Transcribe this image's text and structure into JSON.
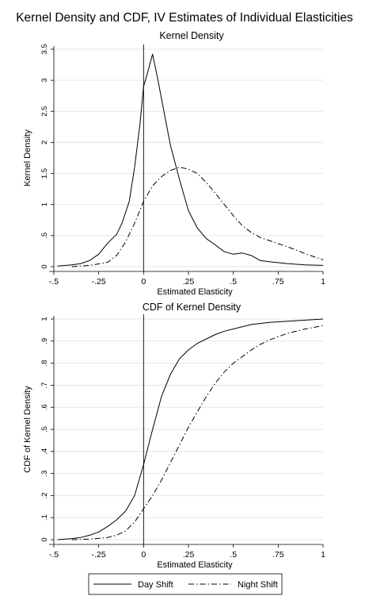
{
  "figure_title": "Kernel Density and CDF, IV Estimates of Individual Elasticities",
  "legend": {
    "placement": "bottom",
    "items": [
      {
        "label": "Day Shift",
        "style": "solid"
      },
      {
        "label": "Night Shift",
        "style": "dash-dot"
      }
    ]
  },
  "chart_data": [
    {
      "type": "line",
      "title": "Kernel Density",
      "xlabel": "Estimated Elasticity",
      "ylabel": "Kernel Density",
      "xlim": [
        -0.5,
        1.0
      ],
      "ylim": [
        0,
        3.5
      ],
      "x_ticks": [
        -0.5,
        -0.25,
        0,
        0.25,
        0.5,
        0.75,
        1.0
      ],
      "x_tick_labels": [
        "-.5",
        "-.25",
        "0",
        ".25",
        ".5",
        ".75",
        "1"
      ],
      "y_ticks": [
        0,
        0.5,
        1,
        1.5,
        2,
        2.5,
        3,
        3.5
      ],
      "y_tick_labels": [
        "0",
        ".5",
        "1",
        "1.5",
        "2",
        "2.5",
        "3",
        "3.5"
      ],
      "grid": true,
      "reference_line_x": 0,
      "series": [
        {
          "name": "Day Shift",
          "x": [
            -0.48,
            -0.4,
            -0.35,
            -0.3,
            -0.25,
            -0.2,
            -0.15,
            -0.12,
            -0.08,
            -0.05,
            -0.02,
            0.0,
            0.02,
            0.05,
            0.08,
            0.1,
            0.15,
            0.2,
            0.25,
            0.3,
            0.35,
            0.4,
            0.45,
            0.5,
            0.55,
            0.6,
            0.65,
            0.7,
            0.8,
            0.9,
            1.0
          ],
          "values": [
            0.01,
            0.03,
            0.05,
            0.1,
            0.2,
            0.38,
            0.52,
            0.7,
            1.05,
            1.6,
            2.3,
            2.9,
            3.1,
            3.42,
            3.0,
            2.7,
            1.95,
            1.4,
            0.9,
            0.62,
            0.45,
            0.35,
            0.24,
            0.2,
            0.22,
            0.18,
            0.1,
            0.08,
            0.05,
            0.03,
            0.02
          ]
        },
        {
          "name": "Night Shift",
          "x": [
            -0.4,
            -0.3,
            -0.2,
            -0.15,
            -0.1,
            -0.05,
            0.0,
            0.05,
            0.1,
            0.15,
            0.2,
            0.25,
            0.3,
            0.35,
            0.4,
            0.45,
            0.5,
            0.55,
            0.6,
            0.65,
            0.7,
            0.75,
            0.8,
            0.85,
            0.9,
            0.95,
            1.0
          ],
          "values": [
            0.0,
            0.02,
            0.07,
            0.18,
            0.4,
            0.7,
            1.05,
            1.3,
            1.45,
            1.55,
            1.6,
            1.57,
            1.5,
            1.35,
            1.18,
            1.0,
            0.82,
            0.66,
            0.55,
            0.47,
            0.42,
            0.37,
            0.32,
            0.27,
            0.21,
            0.16,
            0.11
          ]
        }
      ]
    },
    {
      "type": "line",
      "title": "CDF of Kernel Density",
      "xlabel": "Estimated Elasticity",
      "ylabel": "CDF of Kernel Density",
      "xlim": [
        -0.5,
        1.0
      ],
      "ylim": [
        0,
        1
      ],
      "x_ticks": [
        -0.5,
        -0.25,
        0,
        0.25,
        0.5,
        0.75,
        1.0
      ],
      "x_tick_labels": [
        "-.5",
        "-.25",
        "0",
        ".25",
        ".5",
        ".75",
        "1"
      ],
      "y_ticks": [
        0,
        0.1,
        0.2,
        0.3,
        0.4,
        0.5,
        0.6,
        0.7,
        0.8,
        0.9,
        1
      ],
      "y_tick_labels": [
        "0",
        ".1",
        ".2",
        ".3",
        ".4",
        ".5",
        ".6",
        ".7",
        ".8",
        ".9",
        "1"
      ],
      "grid": true,
      "reference_line_x": 0,
      "series": [
        {
          "name": "Day Shift",
          "x": [
            -0.48,
            -0.4,
            -0.35,
            -0.3,
            -0.25,
            -0.2,
            -0.15,
            -0.1,
            -0.05,
            0.0,
            0.05,
            0.1,
            0.15,
            0.2,
            0.25,
            0.3,
            0.35,
            0.4,
            0.45,
            0.5,
            0.6,
            0.7,
            0.8,
            0.9,
            1.0
          ],
          "values": [
            0.0,
            0.005,
            0.01,
            0.02,
            0.035,
            0.06,
            0.09,
            0.13,
            0.2,
            0.34,
            0.5,
            0.65,
            0.75,
            0.82,
            0.86,
            0.89,
            0.91,
            0.93,
            0.945,
            0.955,
            0.975,
            0.985,
            0.99,
            0.995,
            1.0
          ]
        },
        {
          "name": "Night Shift",
          "x": [
            -0.4,
            -0.3,
            -0.25,
            -0.2,
            -0.15,
            -0.1,
            -0.05,
            0.0,
            0.05,
            0.1,
            0.15,
            0.2,
            0.25,
            0.3,
            0.35,
            0.4,
            0.45,
            0.5,
            0.55,
            0.6,
            0.65,
            0.7,
            0.8,
            0.9,
            1.0
          ],
          "values": [
            0.0,
            0.003,
            0.006,
            0.01,
            0.02,
            0.04,
            0.08,
            0.14,
            0.2,
            0.27,
            0.35,
            0.43,
            0.51,
            0.58,
            0.65,
            0.71,
            0.76,
            0.8,
            0.83,
            0.86,
            0.885,
            0.905,
            0.935,
            0.955,
            0.97
          ]
        }
      ]
    }
  ]
}
